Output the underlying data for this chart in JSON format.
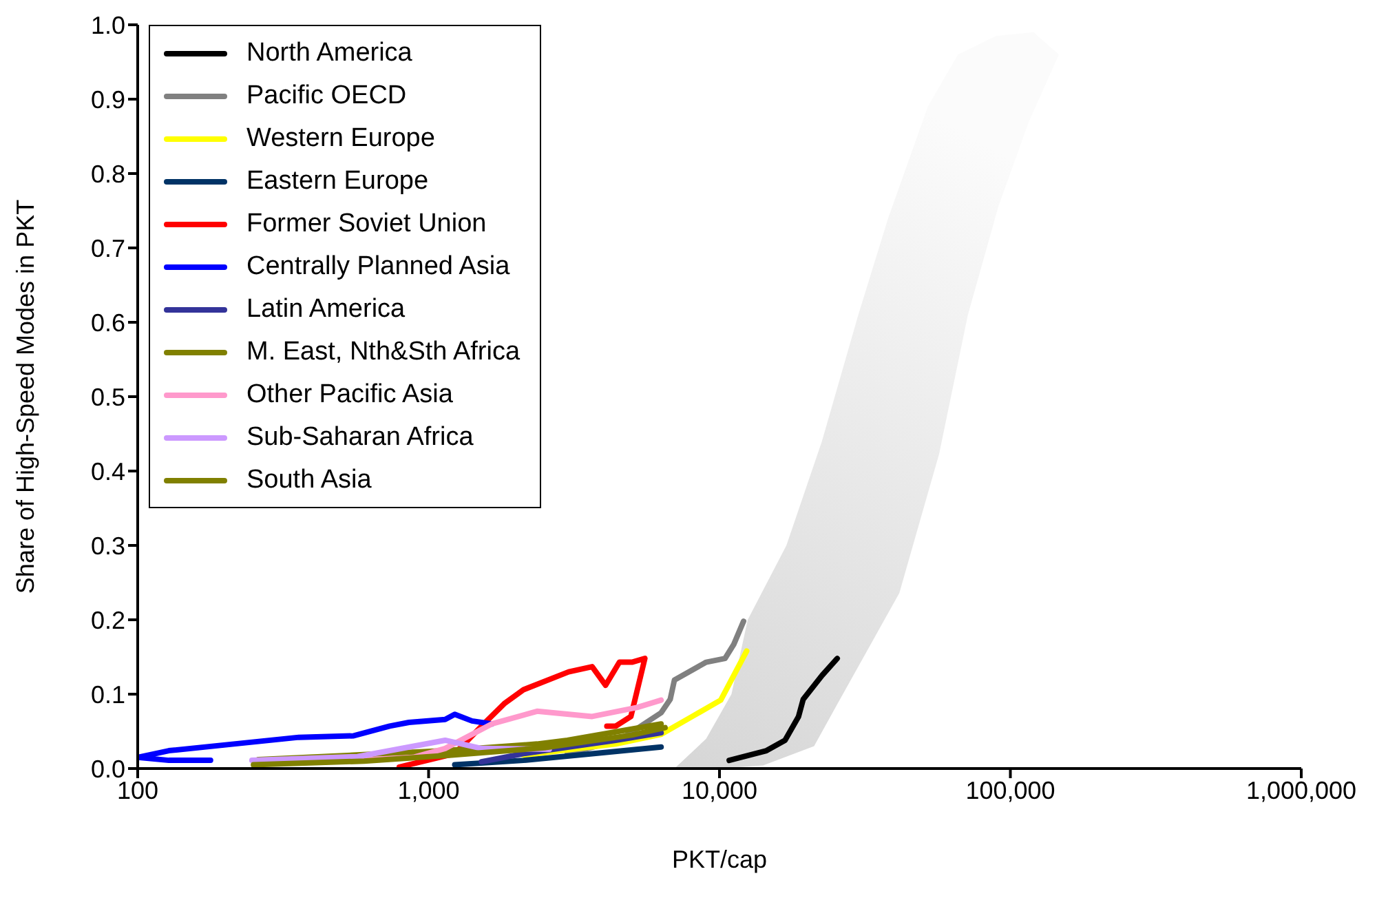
{
  "chart_data": {
    "type": "line",
    "xlabel": "PKT/cap",
    "ylabel": "Share of High-Speed Modes in PKT",
    "log": "x",
    "xlim": [
      100,
      1000000
    ],
    "xticks": [
      {
        "value": 100,
        "label": "100"
      },
      {
        "value": 1000,
        "label": "1,000"
      },
      {
        "value": 10000,
        "label": "10,000"
      },
      {
        "value": 100000,
        "label": "100,000"
      },
      {
        "value": 1000000,
        "label": "1,000,000"
      }
    ],
    "ylim": [
      0,
      1
    ],
    "yticks": [
      {
        "value": 0,
        "label": "0.0"
      },
      {
        "value": 0.1,
        "label": "0.1"
      },
      {
        "value": 0.2,
        "label": "0.2"
      },
      {
        "value": 0.3,
        "label": "0.3"
      },
      {
        "value": 0.4,
        "label": "0.4"
      },
      {
        "value": 0.5,
        "label": "0.5"
      },
      {
        "value": 0.6,
        "label": "0.6"
      },
      {
        "value": 0.7,
        "label": "0.7"
      },
      {
        "value": 0.8,
        "label": "0.8"
      },
      {
        "value": 0.9,
        "label": "0.9"
      },
      {
        "value": 1,
        "label": "1.0"
      }
    ],
    "grid": false,
    "legend": "top left",
    "marker": "none",
    "line_style": "solid",
    "series": [
      {
        "name": "North America",
        "color": "#000000",
        "x": [
          10800,
          14500,
          16800,
          18700,
          19400,
          22500,
          25400
        ],
        "values": [
          0.011,
          0.024,
          0.038,
          0.07,
          0.093,
          0.125,
          0.148
        ]
      },
      {
        "name": "Pacific OECD",
        "color": "#808080",
        "x": [
          3000,
          4530,
          6300,
          6770,
          7000,
          9000,
          10450,
          11200,
          12100
        ],
        "values": [
          0.02,
          0.038,
          0.075,
          0.093,
          0.119,
          0.143,
          0.148,
          0.167,
          0.198
        ]
      },
      {
        "name": "Western Europe",
        "color": "#ffff00",
        "x": [
          2120,
          4400,
          6300,
          8060,
          10100,
          12400
        ],
        "values": [
          0.018,
          0.033,
          0.046,
          0.07,
          0.092,
          0.158
        ]
      },
      {
        "name": "Eastern Europe",
        "color": "#003366",
        "x": [
          1230,
          2120,
          3650,
          6300
        ],
        "values": [
          0.005,
          0.011,
          0.02,
          0.029
        ]
      },
      {
        "name": "Former Soviet Union",
        "color": "#ff0000",
        "x": [
          793,
          1230,
          1520,
          1830,
          2120,
          3030,
          3650,
          4060,
          4530,
          5000,
          5540,
          4960,
          4400,
          4100
        ],
        "values": [
          0.002,
          0.02,
          0.057,
          0.088,
          0.106,
          0.13,
          0.137,
          0.112,
          0.143,
          0.143,
          0.148,
          0.07,
          0.057,
          0.057
        ]
      },
      {
        "name": "Centrally Planned Asia",
        "color": "#0000ff",
        "x": [
          178,
          128,
          100,
          128,
          214,
          358,
          553,
          735,
          856,
          1140,
          1230,
          1410,
          1650
        ],
        "values": [
          0.011,
          0.011,
          0.015,
          0.024,
          0.033,
          0.042,
          0.044,
          0.057,
          0.062,
          0.066,
          0.073,
          0.064,
          0.06
        ]
      },
      {
        "name": "Latin America",
        "color": "#333399",
        "x": [
          1520,
          2120,
          3030,
          4400,
          6300
        ],
        "values": [
          0.009,
          0.02,
          0.029,
          0.038,
          0.048
        ]
      },
      {
        "name": "M. East, Nth&Sth Africa",
        "color": "#808000",
        "x": [
          260,
          550,
          1140,
          2360,
          3000,
          6300
        ],
        "values": [
          0.012,
          0.018,
          0.024,
          0.033,
          0.038,
          0.06
        ]
      },
      {
        "name": "Other Pacific Asia",
        "color": "#ff99cc",
        "x": [
          445,
          885,
          1140,
          1650,
          2360,
          3650,
          5200,
          6300
        ],
        "values": [
          0.009,
          0.015,
          0.027,
          0.06,
          0.077,
          0.07,
          0.082,
          0.092
        ]
      },
      {
        "name": "Sub-Saharan Africa",
        "color": "#cc99ff",
        "x": [
          247,
          570,
          1140,
          1520,
          2600
        ],
        "values": [
          0.011,
          0.016,
          0.038,
          0.027,
          0.026
        ]
      },
      {
        "name": "South Asia",
        "color": "#808000",
        "x": [
          250,
          600,
          1200,
          2500,
          5000,
          6500
        ],
        "values": [
          0.005,
          0.01,
          0.018,
          0.028,
          0.045,
          0.055
        ]
      }
    ]
  }
}
